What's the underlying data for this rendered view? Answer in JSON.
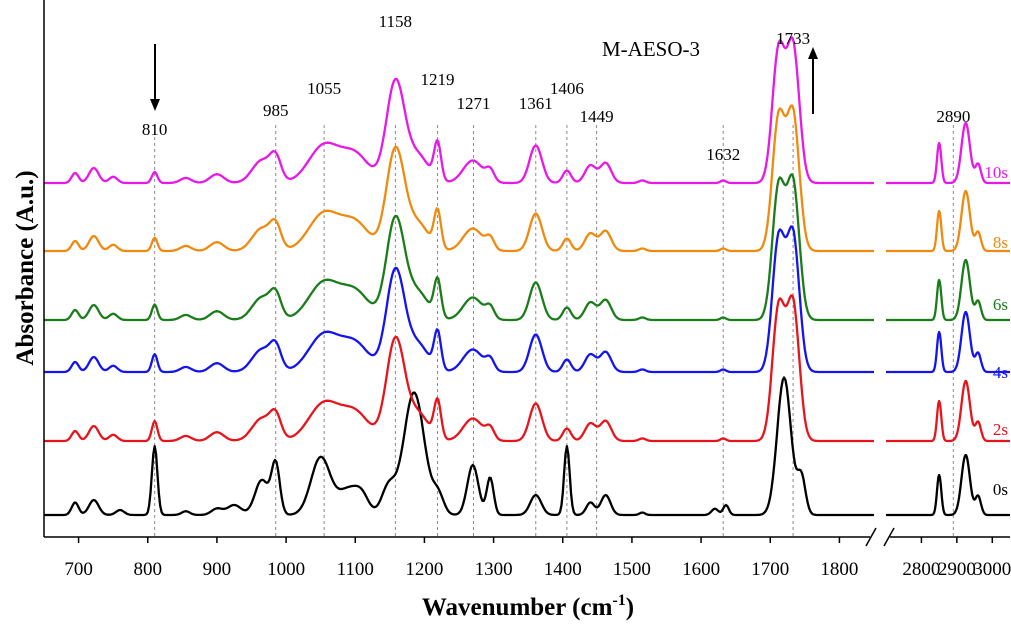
{
  "chart_data": {
    "type": "line",
    "title": "M-AESO-3",
    "xlabel_main": "Wavenumber (cm",
    "xlabel_sup": "-1",
    "xlabel_close": ")",
    "ylabel": "Absorbance (A.u.)",
    "axis_break": true,
    "segments": [
      {
        "xlim": [
          650,
          1850
        ],
        "ticks": [
          700,
          800,
          900,
          1000,
          1100,
          1200,
          1300,
          1400,
          1500,
          1600,
          1700,
          1800
        ]
      },
      {
        "xlim": [
          2700,
          3050
        ],
        "ticks": [
          2800,
          2900,
          3000
        ]
      }
    ],
    "peak_labels": [
      "810",
      "985",
      "1055",
      "1158",
      "1219",
      "1271",
      "1361",
      "1406",
      "1449",
      "1632",
      "1733",
      "2890"
    ],
    "peak_positions": [
      810,
      985,
      1055,
      1158,
      1219,
      1271,
      1361,
      1406,
      1449,
      1632,
      1733,
      2890
    ],
    "annotations": {
      "arrow_down_at": 810,
      "arrow_up_at": 1733
    },
    "grid": false,
    "series": [
      {
        "name": "0s",
        "color": "#000000",
        "offset": 0
      },
      {
        "name": "2s",
        "color": "#e8141b",
        "offset": 1
      },
      {
        "name": "4s",
        "color": "#1414f0",
        "offset": 2
      },
      {
        "name": "6s",
        "color": "#1a7d1a",
        "offset": 3
      },
      {
        "name": "8s",
        "color": "#f08a0f",
        "offset": 4
      },
      {
        "name": "10s",
        "color": "#e818e8",
        "offset": 5
      }
    ]
  }
}
